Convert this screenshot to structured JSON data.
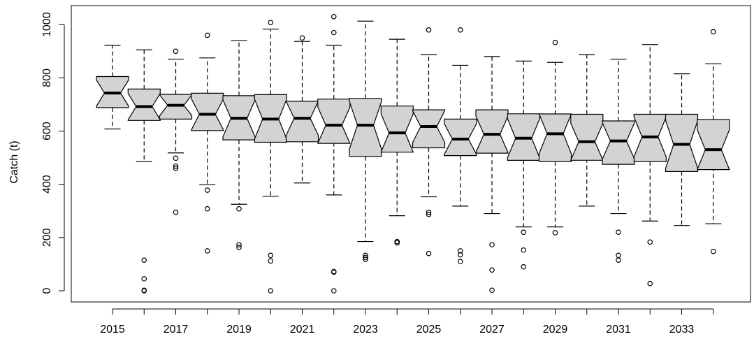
{
  "chart_data": {
    "type": "boxplot",
    "notched": true,
    "title": "",
    "xlabel": "",
    "ylabel": "Catch (t)",
    "ylim": [
      -50,
      1060
    ],
    "yticks": [
      0,
      200,
      400,
      600,
      800,
      1000
    ],
    "x_tick_labels_shown": [
      "2015",
      "2017",
      "2019",
      "2021",
      "2023",
      "2025",
      "2027",
      "2029",
      "2031",
      "2033"
    ],
    "box_fill": "#d3d3d3",
    "line_color": "#000000",
    "categories": [
      "2015",
      "2016",
      "2017",
      "2018",
      "2019",
      "2020",
      "2021",
      "2022",
      "2023",
      "2024",
      "2025",
      "2026",
      "2027",
      "2028",
      "2029",
      "2030",
      "2031",
      "2032",
      "2033",
      "2034"
    ],
    "boxes": [
      {
        "year": "2015",
        "whisker_low": 608,
        "q1": 688,
        "median": 743,
        "q3": 805,
        "whisker_high": 922,
        "outliers": []
      },
      {
        "year": "2016",
        "whisker_low": 485,
        "q1": 640,
        "median": 692,
        "q3": 758,
        "whisker_high": 905,
        "outliers": [
          115,
          45,
          2,
          0
        ]
      },
      {
        "year": "2017",
        "whisker_low": 518,
        "q1": 645,
        "median": 697,
        "q3": 738,
        "whisker_high": 870,
        "outliers": [
          900,
          498,
          468,
          460,
          295
        ]
      },
      {
        "year": "2018",
        "whisker_low": 398,
        "q1": 602,
        "median": 663,
        "q3": 742,
        "whisker_high": 875,
        "outliers": [
          960,
          378,
          308,
          150
        ]
      },
      {
        "year": "2019",
        "whisker_low": 325,
        "q1": 567,
        "median": 648,
        "q3": 733,
        "whisker_high": 940,
        "outliers": [
          173,
          163,
          308
        ]
      },
      {
        "year": "2020",
        "whisker_low": 355,
        "q1": 558,
        "median": 645,
        "q3": 737,
        "whisker_high": 983,
        "outliers": [
          1008,
          133,
          112,
          0
        ]
      },
      {
        "year": "2021",
        "whisker_low": 405,
        "q1": 560,
        "median": 648,
        "q3": 712,
        "whisker_high": 937,
        "outliers": [
          950
        ]
      },
      {
        "year": "2022",
        "whisker_low": 360,
        "q1": 558,
        "median": 622,
        "q3": 720,
        "whisker_high": 922,
        "outliers": [
          1030,
          970,
          72,
          70,
          0
        ]
      },
      {
        "year": "2023",
        "whisker_low": 185,
        "q1": 505,
        "median": 622,
        "q3": 723,
        "whisker_high": 1013,
        "outliers": [
          133,
          125,
          118
        ]
      },
      {
        "year": "2024",
        "whisker_low": 282,
        "q1": 522,
        "median": 593,
        "q3": 694,
        "whisker_high": 945,
        "outliers": [
          185,
          180
        ]
      },
      {
        "year": "2025",
        "whisker_low": 353,
        "q1": 537,
        "median": 617,
        "q3": 680,
        "whisker_high": 887,
        "outliers": [
          980,
          295,
          287,
          140
        ]
      },
      {
        "year": "2026",
        "whisker_low": 318,
        "q1": 508,
        "median": 570,
        "q3": 645,
        "whisker_high": 847,
        "outliers": [
          980,
          150,
          135,
          110
        ]
      },
      {
        "year": "2027",
        "whisker_low": 290,
        "q1": 517,
        "median": 588,
        "q3": 680,
        "whisker_high": 880,
        "outliers": [
          173,
          78,
          2
        ]
      },
      {
        "year": "2028",
        "whisker_low": 240,
        "q1": 490,
        "median": 573,
        "q3": 665,
        "whisker_high": 863,
        "outliers": [
          220,
          153,
          90
        ]
      },
      {
        "year": "2029",
        "whisker_low": 240,
        "q1": 485,
        "median": 590,
        "q3": 662,
        "whisker_high": 858,
        "outliers": [
          933,
          218
        ]
      },
      {
        "year": "2030",
        "whisker_low": 318,
        "q1": 497,
        "median": 560,
        "q3": 663,
        "whisker_high": 887,
        "outliers": []
      },
      {
        "year": "2031",
        "whisker_low": 290,
        "q1": 475,
        "median": 563,
        "q3": 638,
        "whisker_high": 870,
        "outliers": [
          220,
          133,
          115
        ]
      },
      {
        "year": "2032",
        "whisker_low": 262,
        "q1": 485,
        "median": 578,
        "q3": 663,
        "whisker_high": 925,
        "outliers": [
          183,
          27
        ]
      },
      {
        "year": "2033",
        "whisker_low": 245,
        "q1": 448,
        "median": 550,
        "q3": 663,
        "whisker_high": 815,
        "outliers": []
      },
      {
        "year": "2034",
        "whisker_low": 252,
        "q1": 465,
        "median": 530,
        "q3": 643,
        "whisker_high": 853,
        "outliers": [
          973,
          148
        ]
      }
    ]
  }
}
